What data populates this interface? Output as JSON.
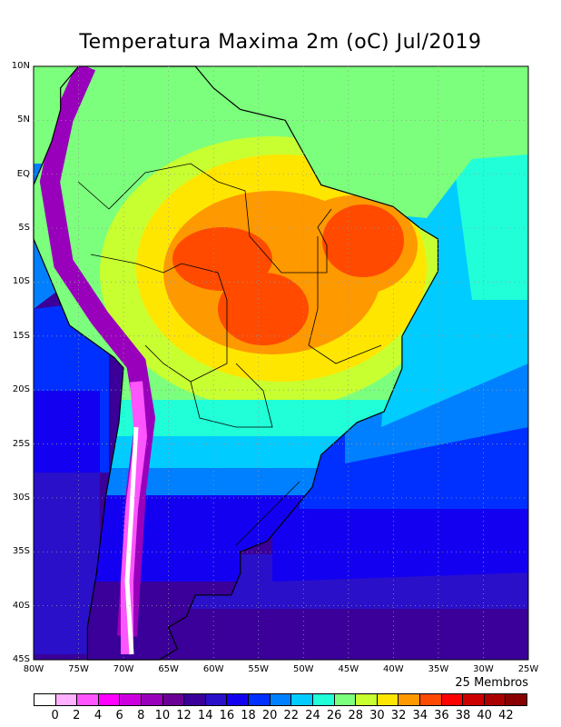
{
  "title": "Temperatura Maxima 2m (oC) Jul/2019",
  "lat_labels": [
    "10N",
    "5N",
    "EQ",
    "5S",
    "10S",
    "15S",
    "20S",
    "25S",
    "30S",
    "35S",
    "40S",
    "45S"
  ],
  "lon_labels": [
    "80W",
    "75W",
    "70W",
    "65W",
    "60W",
    "55W",
    "50W",
    "45W",
    "40W",
    "35W",
    "30W",
    "25W"
  ],
  "members_label": "25 Membros",
  "colorbar": {
    "colors": [
      "#ffffff",
      "#ffb0ff",
      "#ff55ff",
      "#ff00ff",
      "#cc00dd",
      "#9900bb",
      "#6a0096",
      "#3a0099",
      "#2a10c8",
      "#1400f0",
      "#0030ff",
      "#0080ff",
      "#00ccff",
      "#20ffd8",
      "#7cff7c",
      "#c8ff30",
      "#ffe600",
      "#ff9900",
      "#ff4a00",
      "#ff0000",
      "#cc0000",
      "#aa0000",
      "#880000"
    ],
    "labels": [
      "0",
      "2",
      "4",
      "6",
      "8",
      "10",
      "12",
      "14",
      "16",
      "18",
      "20",
      "22",
      "24",
      "26",
      "28",
      "30",
      "32",
      "34",
      "36",
      "38",
      "40",
      "42"
    ]
  }
}
